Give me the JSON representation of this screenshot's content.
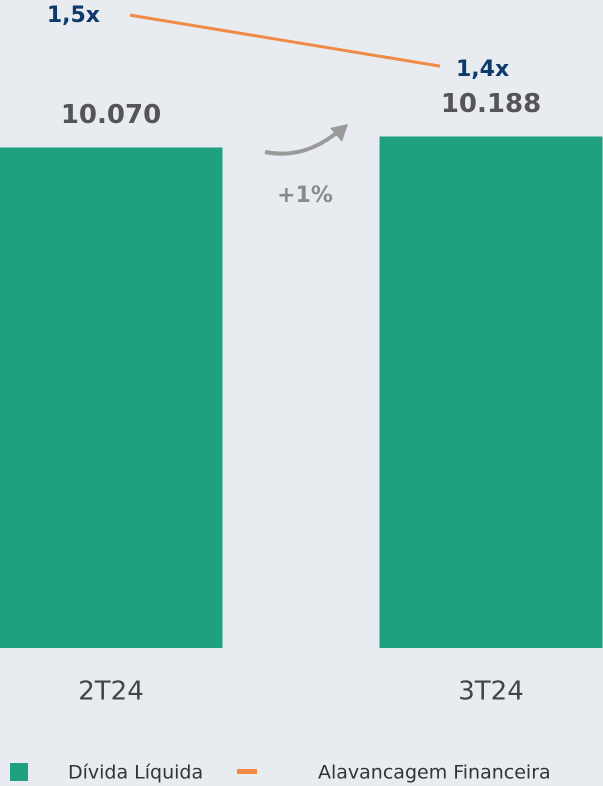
{
  "chart_data": {
    "type": "bar",
    "categories": [
      "2T24",
      "3T24"
    ],
    "series": [
      {
        "name": "Dívida Líquida",
        "type": "bar",
        "color": "#1fa07e",
        "values": [
          10070,
          10188
        ],
        "value_labels": [
          "10.070",
          "10.188"
        ]
      },
      {
        "name": "Alavancagem Financeira",
        "type": "line",
        "axis": "y2",
        "color": "#f08a45",
        "values": [
          1.5,
          1.4
        ],
        "value_labels": [
          "1,5x",
          "1,4x"
        ]
      }
    ],
    "annotations": [
      "+1%"
    ],
    "ylim": [
      4700,
      11545
    ],
    "y2lim": [
      0.26,
      1.51
    ],
    "legend": "bottom"
  }
}
